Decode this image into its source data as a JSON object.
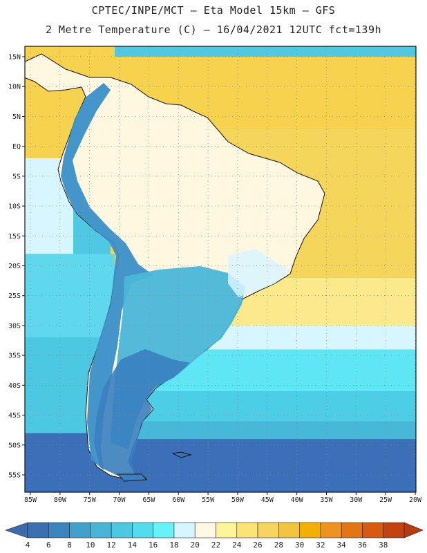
{
  "header": {
    "line1": "CPTEC/INPE/MCT –  Eta Model 15km – GFS",
    "line2": "2 Metre Temperature (C) – 16/04/2021 12UTC fct=139h"
  },
  "map": {
    "lat_labels": [
      "15N",
      "10N",
      "5N",
      "EQ",
      "5S",
      "10S",
      "15S",
      "20S",
      "25S",
      "30S",
      "35S",
      "40S",
      "45S",
      "50S",
      "55S"
    ],
    "lon_labels": [
      "85W",
      "80W",
      "75W",
      "70W",
      "65W",
      "60W",
      "55W",
      "50W",
      "45W",
      "40W",
      "35W",
      "30W",
      "25W",
      "20W"
    ],
    "ocean_bands": [
      {
        "from": 15,
        "to": 3,
        "color": "#f6d24f"
      },
      {
        "from": 3,
        "to": -22,
        "color": "#f5d65a"
      },
      {
        "from": -22,
        "to": -30,
        "color": "#fbe98c"
      },
      {
        "from": -30,
        "to": -34,
        "color": "#d8f6ff"
      },
      {
        "from": -34,
        "to": -41,
        "color": "#5fe6f4"
      },
      {
        "from": -41,
        "to": -46,
        "color": "#4ccfe6"
      },
      {
        "from": -46,
        "to": -49,
        "color": "#48b8d8"
      },
      {
        "from": -49,
        "to": -58,
        "color": "#3b6fb7"
      }
    ],
    "pacific_color": "#4fc9e3",
    "land_colors": {
      "tropical": "#fff7e0",
      "andes": "#3a8fc7",
      "south": "#4ab6d8",
      "patagonia": "#3a7fc0",
      "highlands": "#d8f4ff"
    }
  },
  "colorbar": {
    "labels": [
      "4",
      "6",
      "8",
      "10",
      "12",
      "14",
      "16",
      "18",
      "20",
      "22",
      "24",
      "26",
      "28",
      "30",
      "32",
      "34",
      "36",
      "38"
    ],
    "colors": [
      "#3a6fb0",
      "#3c84bf",
      "#42a0cc",
      "#47b4d8",
      "#4cc8e2",
      "#53dceb",
      "#66f2fb",
      "#d6f6ff",
      "#fff8e6",
      "#fef59a",
      "#fbe374",
      "#f6d55e",
      "#f0c53f",
      "#f4b000",
      "#ee9320",
      "#e37512",
      "#d75a10",
      "#c44210"
    ]
  }
}
